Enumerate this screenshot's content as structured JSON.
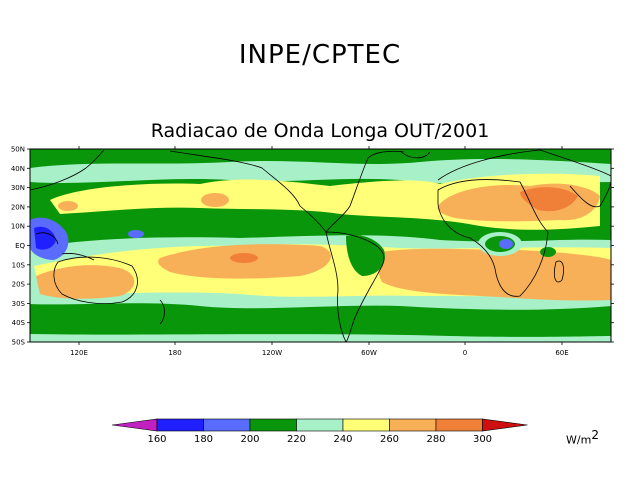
{
  "header": {
    "org": "INPE/CPTEC"
  },
  "map": {
    "title": "Radiacao de Onda Longa OUT/2001",
    "lat_labels": [
      "50N",
      "40N",
      "30N",
      "20N",
      "10N",
      "EQ",
      "10S",
      "20S",
      "30S",
      "40S",
      "50S"
    ],
    "lon_labels": [
      "120E",
      "180",
      "120W",
      "60W",
      "0",
      "60E"
    ]
  },
  "legend": {
    "ticks": [
      "160",
      "180",
      "200",
      "220",
      "240",
      "260",
      "280",
      "300"
    ],
    "units": "W/m",
    "units_exp": "2",
    "colors": [
      "#c020c0",
      "#2020ff",
      "#5a6cff",
      "#0a960a",
      "#a8f0c8",
      "#ffff78",
      "#f8b058",
      "#f08038",
      "#d01010"
    ]
  }
}
